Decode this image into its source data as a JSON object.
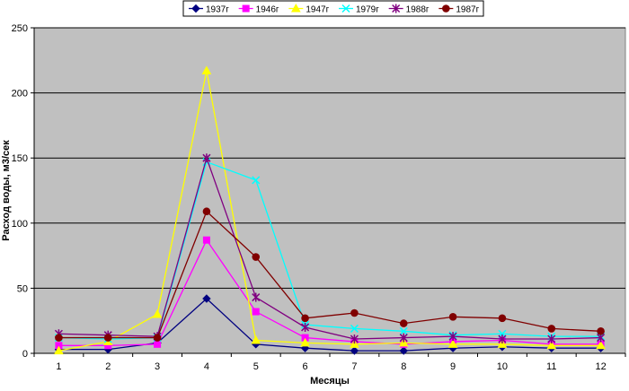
{
  "chart_data": {
    "type": "line",
    "title": "",
    "xlabel": "Месяцы",
    "ylabel": "Расход воды, м3/сек",
    "x": [
      "1",
      "2",
      "3",
      "4",
      "5",
      "6",
      "7",
      "8",
      "9",
      "10",
      "11",
      "12"
    ],
    "ylim": [
      0,
      250
    ],
    "yticks": [
      0,
      50,
      100,
      150,
      200,
      250
    ],
    "grid": "horizontal",
    "legend": "top",
    "series": [
      {
        "name": "1937г",
        "color": "#000080",
        "marker": "diamond",
        "values": [
          3,
          3,
          8,
          42,
          7,
          4,
          2,
          2,
          4,
          5,
          4,
          4
        ]
      },
      {
        "name": "1946г",
        "color": "#ff00ff",
        "marker": "square",
        "values": [
          6,
          6,
          7,
          87,
          32,
          12,
          9,
          7,
          9,
          10,
          7,
          7
        ]
      },
      {
        "name": "1947г",
        "color": "#ffff00",
        "marker": "triangle",
        "values": [
          2,
          9,
          30,
          217,
          10,
          8,
          7,
          8,
          7,
          7,
          6,
          6
        ]
      },
      {
        "name": "1979г",
        "color": "#00ffff",
        "marker": "x",
        "values": [
          12,
          11,
          12,
          147,
          133,
          22,
          19,
          17,
          14,
          15,
          13,
          13
        ]
      },
      {
        "name": "1988г",
        "color": "#800080",
        "marker": "star",
        "values": [
          15,
          14,
          13,
          150,
          43,
          20,
          11,
          12,
          13,
          11,
          11,
          12
        ]
      },
      {
        "name": "1987г",
        "color": "#800000",
        "marker": "circle",
        "values": [
          12,
          12,
          12,
          109,
          74,
          27,
          31,
          23,
          28,
          27,
          19,
          17
        ]
      }
    ]
  }
}
